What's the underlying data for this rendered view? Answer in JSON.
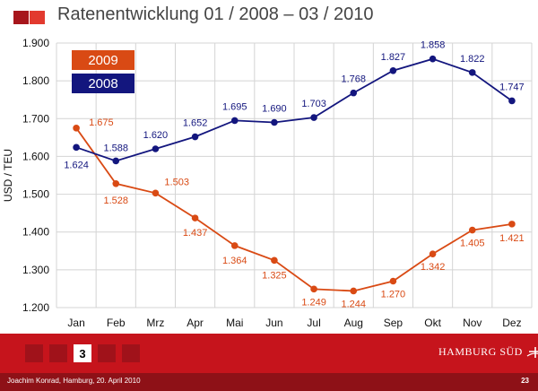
{
  "header": {
    "title": "Ratenentwicklung 01 / 2008 – 03 / 2010"
  },
  "footer": {
    "pager": [
      "",
      "",
      "3",
      "",
      ""
    ],
    "active_page": "3",
    "logo_text": "HAMBURG SÜD",
    "credit": "Joachim Konrad, Hamburg, 20. April 2010",
    "page_number": "23"
  },
  "colors": {
    "2009": "#d94a14",
    "2008": "#13167e",
    "brand_red": "#c6141c"
  },
  "chart_data": {
    "type": "line",
    "categories": [
      "Jan",
      "Feb",
      "Mrz",
      "Apr",
      "Mai",
      "Jun",
      "Jul",
      "Aug",
      "Sep",
      "Okt",
      "Nov",
      "Dez"
    ],
    "ylabel": "USD / TEU",
    "ylim": [
      1200,
      1900
    ],
    "yticks": [
      "1.200",
      "1.300",
      "1.400",
      "1.500",
      "1.600",
      "1.700",
      "1.800",
      "1.900"
    ],
    "grid": true,
    "legend": "top-left",
    "series": [
      {
        "name": "2009",
        "color": "#d94a14",
        "values": [
          1675,
          1528,
          1503,
          1437,
          1364,
          1325,
          1249,
          1244,
          1270,
          1342,
          1405,
          1421
        ],
        "labels": [
          "1.675",
          "1.528",
          "1.503",
          "1.437",
          "1.364",
          "1.325",
          "1.249",
          "1.244",
          "1.270",
          "1.342",
          "1.405",
          "1.421"
        ]
      },
      {
        "name": "2008",
        "color": "#13167e",
        "values": [
          1624,
          1588,
          1620,
          1652,
          1695,
          1690,
          1703,
          1768,
          1827,
          1858,
          1822,
          1747
        ],
        "labels": [
          "1.624",
          "1.588",
          "1.620",
          "1.652",
          "1.695",
          "1.690",
          "1.703",
          "1.768",
          "1.827",
          "1.858",
          "1.822",
          "1.747"
        ]
      }
    ]
  }
}
